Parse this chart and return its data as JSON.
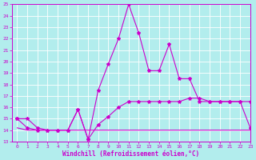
{
  "xlabel": "Windchill (Refroidissement éolien,°C)",
  "background_color": "#b2eded",
  "grid_color": "#c8c8d8",
  "line_color": "#cc00cc",
  "ylim": [
    13,
    25
  ],
  "xlim": [
    -0.5,
    23
  ],
  "yticks": [
    13,
    14,
    15,
    16,
    17,
    18,
    19,
    20,
    21,
    22,
    23,
    24,
    25
  ],
  "xticks": [
    0,
    1,
    2,
    3,
    4,
    5,
    6,
    7,
    8,
    9,
    10,
    11,
    12,
    13,
    14,
    15,
    16,
    17,
    18,
    19,
    20,
    21,
    22,
    23
  ],
  "line1_x": [
    0,
    1,
    2,
    3,
    4,
    5,
    6,
    7,
    8,
    9,
    10,
    11,
    12,
    13,
    14,
    15,
    16,
    17,
    18,
    19,
    20,
    21,
    22,
    23
  ],
  "line1_y": [
    15,
    15,
    14.2,
    14,
    14,
    14,
    15.8,
    13.2,
    17.5,
    19.8,
    22.0,
    25.0,
    22.5,
    19.2,
    19.2,
    21.5,
    18.5,
    18.5,
    16.5,
    16.5,
    16.5,
    16.5,
    16.5,
    16.5
  ],
  "line2_x": [
    0,
    1,
    2,
    3,
    4,
    5,
    6,
    7,
    8,
    9,
    10,
    11,
    12,
    13,
    14,
    15,
    16,
    17,
    18,
    19,
    20,
    21,
    22,
    23
  ],
  "line2_y": [
    15,
    14.2,
    14,
    14,
    14,
    14,
    15.8,
    13.2,
    14.5,
    15.2,
    16.0,
    16.5,
    16.5,
    16.5,
    16.5,
    16.5,
    16.5,
    16.8,
    16.8,
    16.5,
    16.5,
    16.5,
    16.5,
    14.2
  ],
  "line3_x": [
    0,
    1,
    2,
    3,
    4,
    5,
    6,
    7,
    8,
    9,
    10,
    11,
    12,
    13,
    14,
    15,
    16,
    17,
    18,
    19,
    20,
    21,
    22,
    23
  ],
  "line3_y": [
    14.2,
    14.0,
    14.0,
    14.0,
    14.0,
    14.0,
    14.0,
    14.0,
    14.0,
    14.0,
    14.0,
    14.0,
    14.0,
    14.0,
    14.0,
    14.0,
    14.0,
    14.0,
    14.0,
    14.0,
    14.0,
    14.0,
    14.0,
    14.0
  ]
}
